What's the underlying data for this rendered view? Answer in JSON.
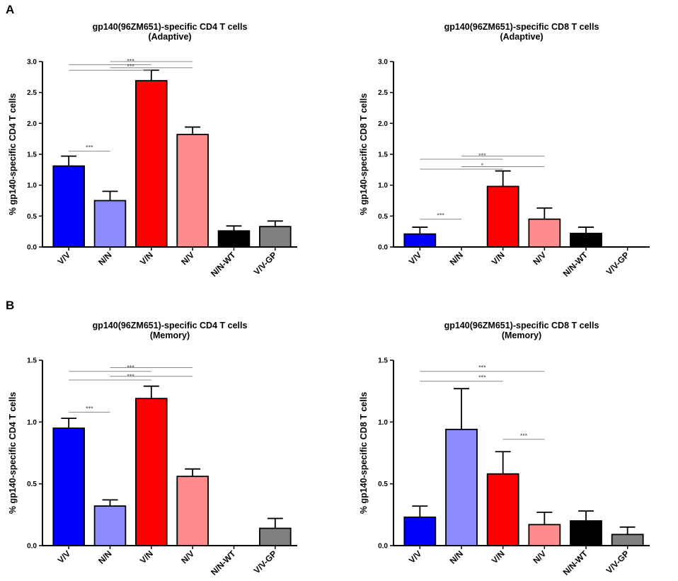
{
  "chart_data": [
    {
      "panel": "A",
      "type": "bar",
      "title": "gp140(96ZM651)-specific CD4 T cells",
      "subtitle": "(Adaptive)",
      "ylabel": "% gp140-specific CD4 T cells",
      "ylim": [
        0,
        3.0
      ],
      "yticks": [
        "0.0",
        "0.5",
        "1.0",
        "1.5",
        "2.0",
        "2.5",
        "3.0"
      ],
      "categories": [
        "V/V",
        "N/N",
        "V/N",
        "N/V",
        "N/N-WT",
        "V/V-GP"
      ],
      "values": [
        1.31,
        0.75,
        2.69,
        1.82,
        0.26,
        0.33
      ],
      "errors": [
        0.16,
        0.15,
        0.17,
        0.12,
        0.08,
        0.09
      ],
      "colors": [
        "#0000ff",
        "#8c8cff",
        "#ff0000",
        "#ff8c8c",
        "#000000",
        "#808080"
      ],
      "comparisons": [
        {
          "from": 0,
          "to": 1,
          "y": 1.55,
          "label": "***"
        },
        {
          "from": 0,
          "to": 2,
          "y": 2.95,
          "label": "***"
        },
        {
          "from": 1,
          "to": 3,
          "y": 3.0,
          "label": ""
        },
        {
          "from": 0,
          "to": 2,
          "y": 2.86,
          "label": "***"
        },
        {
          "from": 1,
          "to": 3,
          "y": 2.9,
          "label": ""
        }
      ]
    },
    {
      "panel": "",
      "type": "bar",
      "title": "gp140(96ZM651)-specific CD8 T cells",
      "subtitle": "(Adaptive)",
      "ylabel": "% gp140-specific CD8 T cells",
      "ylim": [
        0,
        3.0
      ],
      "yticks": [
        "0.0",
        "0.5",
        "1.0",
        "1.5",
        "2.0",
        "2.5",
        "3.0"
      ],
      "categories": [
        "V/V",
        "N/N",
        "V/N",
        "N/V",
        "N/N-WT",
        "V/V-GP"
      ],
      "values": [
        0.21,
        0.0,
        0.98,
        0.45,
        0.22,
        0.0
      ],
      "errors": [
        0.11,
        0.0,
        0.25,
        0.18,
        0.1,
        0.0
      ],
      "colors": [
        "#0000ff",
        "#8c8cff",
        "#ff0000",
        "#ff8c8c",
        "#000000",
        "#808080"
      ],
      "comparisons": [
        {
          "from": 0,
          "to": 1,
          "y": 0.45,
          "label": "***"
        },
        {
          "from": 0,
          "to": 2,
          "y": 1.42,
          "label": "***"
        },
        {
          "from": 1,
          "to": 3,
          "y": 1.47,
          "label": ""
        },
        {
          "from": 0,
          "to": 2,
          "y": 1.26,
          "label": "*"
        },
        {
          "from": 1,
          "to": 3,
          "y": 1.3,
          "label": ""
        }
      ]
    },
    {
      "panel": "B",
      "type": "bar",
      "title": "gp140(96ZM651)-specific CD4 T cells",
      "subtitle": "(Memory)",
      "ylabel": "% gp140-specific CD4 T cells",
      "ylim": [
        0,
        1.5
      ],
      "yticks": [
        "0.0",
        "0.5",
        "1.0",
        "1.5"
      ],
      "categories": [
        "V/V",
        "N/N",
        "V/N",
        "N/V",
        "N/N-WT",
        "V/V-GP"
      ],
      "values": [
        0.95,
        0.32,
        1.19,
        0.56,
        0.0,
        0.14
      ],
      "errors": [
        0.08,
        0.05,
        0.1,
        0.06,
        0.0,
        0.08
      ],
      "colors": [
        "#0000ff",
        "#8c8cff",
        "#ff0000",
        "#ff8c8c",
        "#000000",
        "#808080"
      ],
      "comparisons": [
        {
          "from": 0,
          "to": 1,
          "y": 1.08,
          "label": "***"
        },
        {
          "from": 0,
          "to": 2,
          "y": 1.41,
          "label": "***"
        },
        {
          "from": 1,
          "to": 3,
          "y": 1.44,
          "label": ""
        },
        {
          "from": 0,
          "to": 2,
          "y": 1.34,
          "label": "***"
        },
        {
          "from": 1,
          "to": 3,
          "y": 1.37,
          "label": ""
        }
      ]
    },
    {
      "panel": "",
      "type": "bar",
      "title": "gp140(96ZM651)-specific CD8 T cells",
      "subtitle": "(Memory)",
      "ylabel": "% gp140-specific CD8 T cells",
      "ylim": [
        0,
        1.5
      ],
      "yticks": [
        "0.0",
        "0.5",
        "1.0",
        "1.5"
      ],
      "categories": [
        "V/V",
        "N/N",
        "V/N",
        "N/V",
        "N/N-WT",
        "V/V-GP"
      ],
      "values": [
        0.23,
        0.94,
        0.58,
        0.17,
        0.2,
        0.09
      ],
      "errors": [
        0.09,
        0.33,
        0.18,
        0.1,
        0.08,
        0.06
      ],
      "colors": [
        "#0000ff",
        "#8c8cff",
        "#ff0000",
        "#ff8c8c",
        "#000000",
        "#808080"
      ],
      "comparisons": [
        {
          "from": 0,
          "to": 3,
          "y": 1.41,
          "label": "***"
        },
        {
          "from": 0,
          "to": 2,
          "y": 1.33,
          "label": "***"
        },
        {
          "from": 2,
          "to": 3,
          "y": 0.86,
          "label": "***"
        }
      ]
    }
  ]
}
